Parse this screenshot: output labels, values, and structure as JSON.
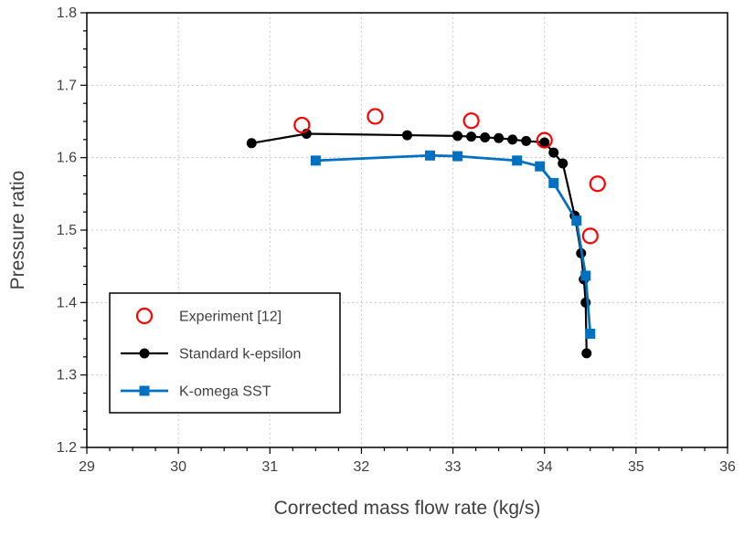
{
  "chart_data": {
    "type": "line",
    "title": "",
    "xlabel": "Corrected mass flow rate (kg/s)",
    "ylabel": "Pressure ratio",
    "xlim": [
      29,
      36
    ],
    "ylim": [
      1.2,
      1.8
    ],
    "x_tick_step": 1,
    "y_tick_step": 0.1,
    "x_minor_per_major": 4,
    "y_minor_per_major": 4,
    "grid": true,
    "grid_style": "dashed-light-gray",
    "grid_color": "#c9c9c9",
    "axis_text_color": "#404040",
    "plot_border_color": "#000000",
    "legend": {
      "position": "inside-lower-left",
      "border": true,
      "background": "#ffffff"
    },
    "series": [
      {
        "name": "Experiment [12]",
        "marker": "open-circle",
        "color": "#FF0000",
        "line": false,
        "points": [
          [
            31.35,
            1.645
          ],
          [
            32.15,
            1.657
          ],
          [
            33.2,
            1.651
          ],
          [
            34.0,
            1.624
          ],
          [
            34.58,
            1.564
          ],
          [
            34.5,
            1.492
          ]
        ]
      },
      {
        "name": "Standard k-epsilon",
        "marker": "filled-circle",
        "color": "#000000",
        "line": true,
        "points": [
          [
            30.8,
            1.62
          ],
          [
            31.4,
            1.633
          ],
          [
            32.5,
            1.631
          ],
          [
            33.05,
            1.63
          ],
          [
            33.2,
            1.629
          ],
          [
            33.35,
            1.628
          ],
          [
            33.5,
            1.627
          ],
          [
            33.65,
            1.625
          ],
          [
            33.8,
            1.623
          ],
          [
            34.0,
            1.621
          ],
          [
            34.1,
            1.607
          ],
          [
            34.2,
            1.592
          ],
          [
            34.33,
            1.52
          ],
          [
            34.4,
            1.468
          ],
          [
            34.43,
            1.432
          ],
          [
            34.45,
            1.4
          ],
          [
            34.46,
            1.33
          ]
        ]
      },
      {
        "name": "K-omega SST",
        "marker": "filled-square",
        "color": "#0070C0",
        "line": true,
        "points": [
          [
            31.5,
            1.596
          ],
          [
            32.75,
            1.603
          ],
          [
            33.05,
            1.602
          ],
          [
            33.7,
            1.596
          ],
          [
            33.95,
            1.588
          ],
          [
            34.1,
            1.565
          ],
          [
            34.35,
            1.513
          ],
          [
            34.45,
            1.437
          ],
          [
            34.5,
            1.357
          ]
        ]
      }
    ]
  }
}
